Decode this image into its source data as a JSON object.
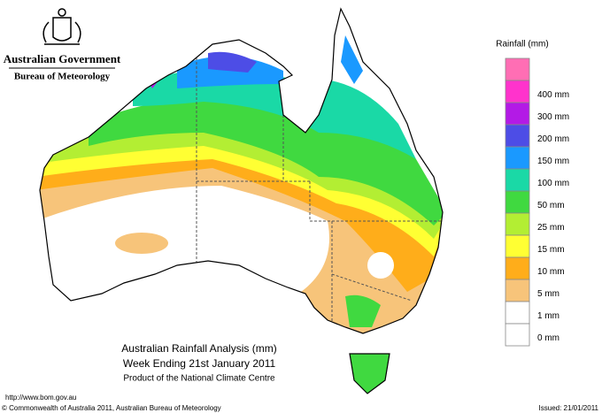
{
  "header": {
    "government": "Australian Government",
    "agency": "Bureau of Meteorology"
  },
  "legend": {
    "title": "Rainfall (mm)",
    "items": [
      {
        "label": null,
        "color": "#ff6eb4"
      },
      {
        "label": "400 mm",
        "color": "#ff33cc"
      },
      {
        "label": "300 mm",
        "color": "#b31ae6"
      },
      {
        "label": "200 mm",
        "color": "#4d4de6"
      },
      {
        "label": "150 mm",
        "color": "#1a99ff"
      },
      {
        "label": "100 mm",
        "color": "#1ad9a6"
      },
      {
        "label": "50 mm",
        "color": "#40d940"
      },
      {
        "label": "25 mm",
        "color": "#b3ee33"
      },
      {
        "label": "15 mm",
        "color": "#ffff33"
      },
      {
        "label": "10 mm",
        "color": "#ffad1a"
      },
      {
        "label": "5 mm",
        "color": "#f7c47a"
      },
      {
        "label": "1 mm",
        "color": "#ffffff"
      },
      {
        "label": "0 mm",
        "color": "#ffffff"
      }
    ]
  },
  "map": {
    "title": "Australian Rainfall Analysis (mm)",
    "subtitle": "Week Ending 21st January 2011",
    "credit": "Product of the National Climate Centre"
  },
  "footer": {
    "url": "http://www.bom.gov.au",
    "copyright": "© Commonwealth of Australia 2011, Australian Bureau of Meteorology",
    "issued": "Issued: 21/01/2011"
  }
}
